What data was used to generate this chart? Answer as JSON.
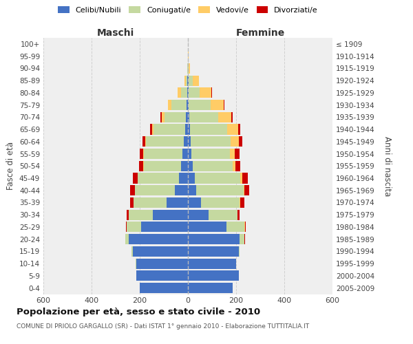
{
  "age_groups": [
    "0-4",
    "5-9",
    "10-14",
    "15-19",
    "20-24",
    "25-29",
    "30-34",
    "35-39",
    "40-44",
    "45-49",
    "50-54",
    "55-59",
    "60-64",
    "65-69",
    "70-74",
    "75-79",
    "80-84",
    "85-89",
    "90-94",
    "95-99",
    "100+"
  ],
  "birth_years": [
    "2005-2009",
    "2000-2004",
    "1995-1999",
    "1990-1994",
    "1985-1989",
    "1980-1984",
    "1975-1979",
    "1970-1974",
    "1965-1969",
    "1960-1964",
    "1955-1959",
    "1950-1954",
    "1945-1949",
    "1940-1944",
    "1935-1939",
    "1930-1934",
    "1925-1929",
    "1920-1924",
    "1915-1919",
    "1910-1914",
    "≤ 1909"
  ],
  "males": {
    "celibe": [
      200,
      215,
      215,
      230,
      245,
      195,
      145,
      90,
      55,
      38,
      28,
      22,
      18,
      12,
      8,
      5,
      3,
      2,
      1,
      0,
      0
    ],
    "coniugato": [
      0,
      0,
      1,
      3,
      15,
      60,
      100,
      135,
      165,
      170,
      155,
      160,
      155,
      130,
      90,
      65,
      25,
      8,
      2,
      0,
      0
    ],
    "vedovo": [
      0,
      0,
      0,
      0,
      0,
      0,
      0,
      0,
      1,
      1,
      2,
      3,
      5,
      8,
      10,
      12,
      15,
      5,
      1,
      0,
      0
    ],
    "divorziato": [
      0,
      0,
      0,
      0,
      1,
      3,
      8,
      15,
      18,
      20,
      18,
      15,
      12,
      6,
      5,
      2,
      1,
      0,
      0,
      0,
      0
    ]
  },
  "females": {
    "nubile": [
      185,
      210,
      200,
      210,
      215,
      160,
      85,
      55,
      35,
      28,
      20,
      15,
      12,
      8,
      6,
      4,
      3,
      2,
      1,
      0,
      0
    ],
    "coniugata": [
      0,
      0,
      1,
      4,
      20,
      75,
      120,
      160,
      195,
      190,
      165,
      160,
      165,
      155,
      120,
      90,
      45,
      18,
      3,
      1,
      1
    ],
    "vedova": [
      0,
      0,
      0,
      0,
      0,
      1,
      2,
      3,
      5,
      8,
      12,
      20,
      35,
      45,
      55,
      55,
      50,
      25,
      5,
      1,
      0
    ],
    "divorziata": [
      0,
      0,
      0,
      0,
      1,
      3,
      8,
      15,
      18,
      22,
      20,
      18,
      15,
      8,
      5,
      2,
      1,
      0,
      0,
      0,
      0
    ]
  },
  "colors": {
    "celibe": "#4472C4",
    "coniugato": "#C5D9A0",
    "vedovo": "#FFCC66",
    "divorziato": "#CC0000"
  },
  "xlim": 600,
  "title": "Popolazione per età, sesso e stato civile - 2010",
  "subtitle": "COMUNE DI PRIOLO GARGALLO (SR) - Dati ISTAT 1° gennaio 2010 - Elaborazione TUTTITALIA.IT",
  "ylabel_left": "Fasce di età",
  "ylabel_right": "Anni di nascita",
  "xlabel_left": "Maschi",
  "xlabel_right": "Femmine",
  "bg_color": "#EFEFEF",
  "grid_color": "#CCCCCC"
}
